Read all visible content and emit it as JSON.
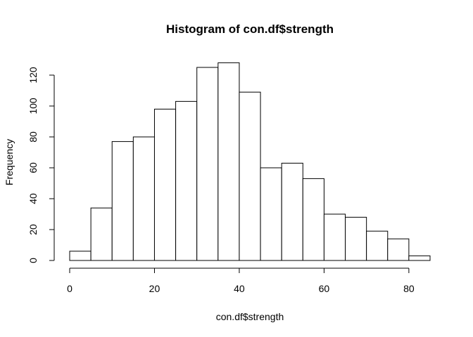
{
  "chart_data": {
    "type": "bar",
    "title": "Histogram of con.df$strength",
    "xlabel": "con.df$strength",
    "ylabel": "Frequency",
    "bin_edges": [
      0,
      5,
      10,
      15,
      20,
      25,
      30,
      35,
      40,
      45,
      50,
      55,
      60,
      65,
      70,
      75,
      80,
      85
    ],
    "values": [
      6,
      34,
      77,
      80,
      98,
      103,
      125,
      128,
      109,
      60,
      63,
      53,
      30,
      28,
      19,
      14,
      3
    ],
    "xlim": [
      0,
      85
    ],
    "ylim": [
      0,
      128
    ],
    "x_ticks": [
      "0",
      "20",
      "40",
      "60",
      "80"
    ],
    "y_ticks": [
      "0",
      "20",
      "40",
      "60",
      "80",
      "100",
      "120"
    ],
    "grid": false,
    "bar_fill": "#ffffff",
    "bar_stroke": "#000000"
  }
}
